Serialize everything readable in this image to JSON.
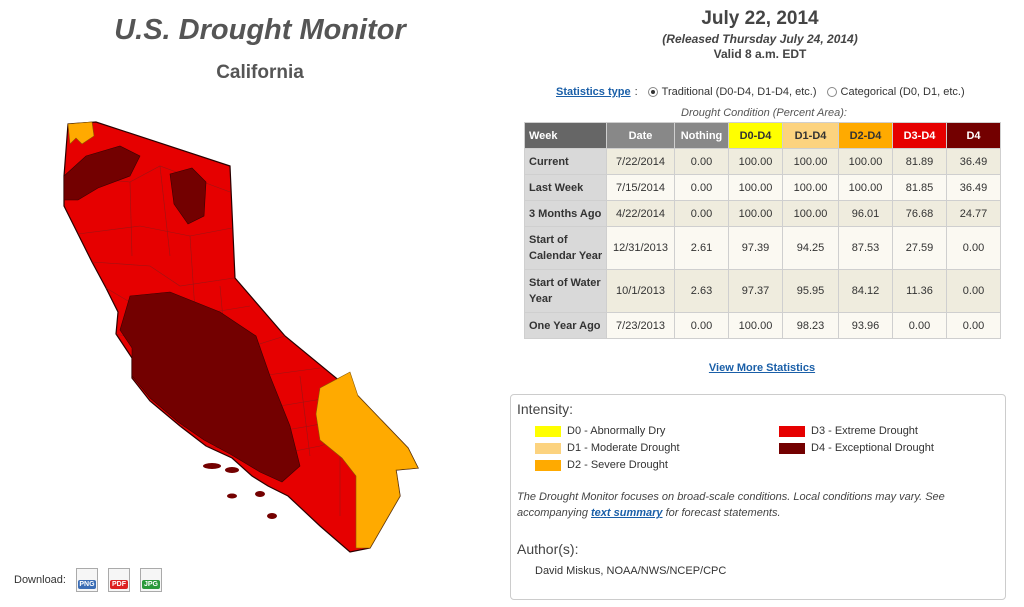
{
  "header": {
    "title": "U.S. Drought Monitor",
    "region": "California"
  },
  "date": {
    "main": "July 22, 2014",
    "released": "(Released Thursday July 24, 2014)",
    "valid": "Valid 8 a.m. EDT"
  },
  "stats": {
    "type_label": "Statistics type",
    "colon": ":",
    "option_traditional": "Traditional (D0-D4, D1-D4, etc.)",
    "option_categorical": "Categorical (D0, D1, etc.)",
    "selected": "Traditional",
    "condition_caption": "Drought Condition (Percent Area):",
    "columns": [
      "Week",
      "Date",
      "Nothing",
      "D0-D4",
      "D1-D4",
      "D2-D4",
      "D3-D4",
      "D4"
    ],
    "rows": [
      {
        "label": "Current",
        "date": "7/22/2014",
        "nothing": "0.00",
        "d0": "100.00",
        "d1": "100.00",
        "d2": "100.00",
        "d3": "81.89",
        "d4": "36.49"
      },
      {
        "label": "Last Week",
        "date": "7/15/2014",
        "nothing": "0.00",
        "d0": "100.00",
        "d1": "100.00",
        "d2": "100.00",
        "d3": "81.85",
        "d4": "36.49"
      },
      {
        "label": "3 Months Ago",
        "date": "4/22/2014",
        "nothing": "0.00",
        "d0": "100.00",
        "d1": "100.00",
        "d2": "96.01",
        "d3": "76.68",
        "d4": "24.77"
      },
      {
        "label": "Start of Calendar Year",
        "date": "12/31/2013",
        "nothing": "2.61",
        "d0": "97.39",
        "d1": "94.25",
        "d2": "87.53",
        "d3": "27.59",
        "d4": "0.00"
      },
      {
        "label": "Start of Water Year",
        "date": "10/1/2013",
        "nothing": "2.63",
        "d0": "97.37",
        "d1": "95.95",
        "d2": "84.12",
        "d3": "11.36",
        "d4": "0.00"
      },
      {
        "label": "One Year Ago",
        "date": "7/23/2013",
        "nothing": "0.00",
        "d0": "100.00",
        "d1": "98.23",
        "d2": "93.96",
        "d3": "0.00",
        "d4": "0.00"
      }
    ],
    "view_more": "View More Statistics"
  },
  "legend": {
    "heading": "Intensity:",
    "items": [
      {
        "label": "D0 - Abnormally Dry",
        "color": "#ffff00"
      },
      {
        "label": "D1 - Moderate Drought",
        "color": "#fcd37f"
      },
      {
        "label": "D2 - Severe Drought",
        "color": "#ffaa00"
      },
      {
        "label": "D3 - Extreme Drought",
        "color": "#e60000"
      },
      {
        "label": "D4 - Exceptional Drought",
        "color": "#730000"
      }
    ],
    "note_pre": "The Drought Monitor focuses on broad-scale conditions. Local conditions may vary. See accompanying",
    "note_link": "text summary",
    "note_post": "for forecast statements."
  },
  "author": {
    "heading": "Author(s):",
    "name": "David Miskus, NOAA/NWS/NCEP/CPC"
  },
  "download": {
    "label": "Download:",
    "formats": [
      "PNG",
      "PDF",
      "JPG"
    ]
  },
  "colors": {
    "d0": "#ffff00",
    "d1": "#fcd37f",
    "d2": "#ffaa00",
    "d3": "#e60000",
    "d4": "#730000",
    "link": "#1a5fa8"
  }
}
